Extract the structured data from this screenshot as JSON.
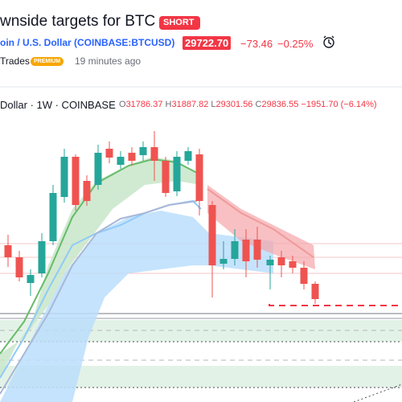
{
  "header": {
    "title": "wnside targets for BTC",
    "badge": "SHORT",
    "symbol": "oin / U.S. Dollar (COINBASE:BTCUSD)",
    "price": "29722.70",
    "change": "−73.46",
    "change_percent": "−0.25%",
    "author": "Trades",
    "author_badge": "PREMIUM",
    "time": "19 minutes ago"
  },
  "legend": {
    "symbol": "Dollar · 1W · COINBASE",
    "ohlc": [
      {
        "label": "O",
        "value": "31786.37"
      },
      {
        "label": "H",
        "value": "31887.82"
      },
      {
        "label": "L",
        "value": "29301.56"
      },
      {
        "label": "C",
        "value": "29836.55"
      }
    ],
    "change": "−1951.70 (−6.14%)"
  }
}
